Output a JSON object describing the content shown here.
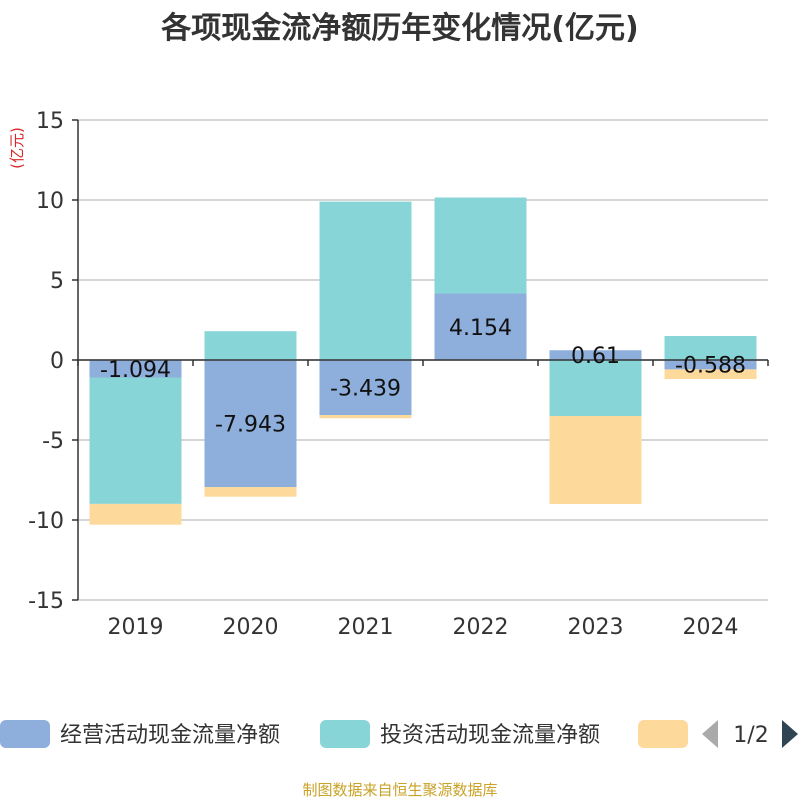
{
  "chart_data": {
    "type": "bar",
    "stacked": true,
    "title": "各项现金流净额历年变化情况(亿元)",
    "ylabel": "(亿元)",
    "ylim": [
      -15,
      15
    ],
    "yticks": [
      15,
      10,
      5,
      0,
      -5,
      -10,
      -15
    ],
    "grid": true,
    "categories": [
      "2019",
      "2020",
      "2021",
      "2022",
      "2023",
      "2024"
    ],
    "series": [
      {
        "name": "经营活动现金流量净额",
        "color": "#8eaedb",
        "values": [
          -1.094,
          -7.943,
          -3.439,
          4.154,
          0.61,
          -0.588
        ]
      },
      {
        "name": "投资活动现金流量净额",
        "color": "#88d5d8",
        "values": [
          -7.9,
          1.8,
          9.9,
          6.0,
          -3.5,
          1.5
        ]
      },
      {
        "name": "",
        "color": "#fdd99b",
        "values": [
          -1.3,
          -0.6,
          -0.2,
          0,
          -5.5,
          -0.6
        ]
      }
    ],
    "data_labels": [
      "-1.094",
      "-7.943",
      "-3.439",
      "4.154",
      "0.61",
      "-0.588"
    ],
    "legend_position": "bottom"
  },
  "legend_page": "1/2",
  "source": "制图数据来自恒生聚源数据库"
}
